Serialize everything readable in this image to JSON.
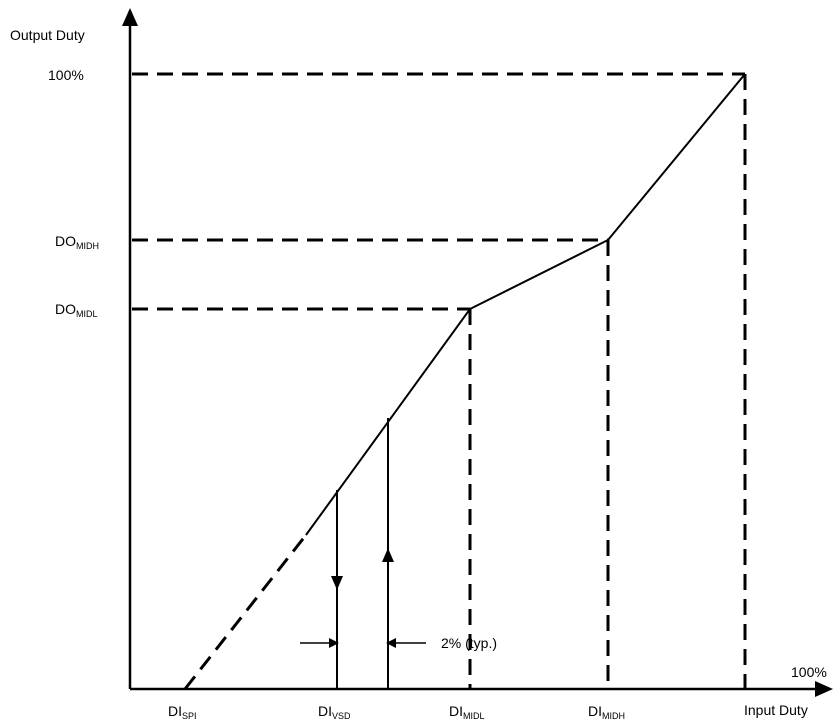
{
  "axes": {
    "y_title": "Output Duty",
    "x_title": "Input Duty",
    "x_max_label": "100%",
    "y_max_label": "100%"
  },
  "y_markers": [
    {
      "main": "DO",
      "sub": "MIDH"
    },
    {
      "main": "DO",
      "sub": "MIDL"
    }
  ],
  "x_markers": [
    {
      "main": "DI",
      "sub": "SPI"
    },
    {
      "main": "DI",
      "sub": "VSD"
    },
    {
      "main": "DI",
      "sub": "MIDL"
    },
    {
      "main": "DI",
      "sub": "MIDH"
    }
  ],
  "hysteresis": {
    "label": "2% (typ.)"
  }
}
